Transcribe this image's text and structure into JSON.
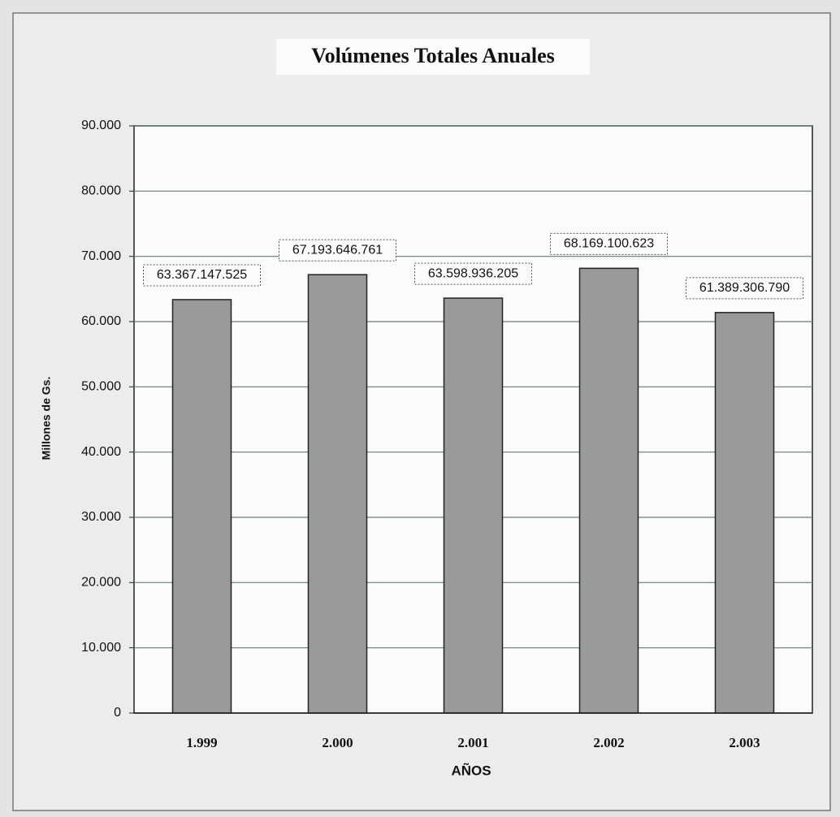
{
  "chart_data": {
    "type": "bar",
    "title": "Volúmenes Totales Anuales",
    "y_label": "Millones de Gs.",
    "x_label": "AÑOS",
    "categories": [
      "1.999",
      "2.000",
      "2.001",
      "2.002",
      "2.003"
    ],
    "values": [
      63367.147525,
      67193.646761,
      63598.936205,
      68169.100623,
      61389.30679
    ],
    "value_labels": [
      "63.367.147.525",
      "67.193.646.761",
      "63.598.936.205",
      "68.169.100.623",
      "61.389.306.790"
    ],
    "color": "#9a9a9a",
    "ylim": [
      0,
      90000
    ],
    "yticks": [
      0,
      {
        "value": 10000,
        "label": "10.000"
      },
      {
        "value": 20000,
        "label": "20.000"
      },
      {
        "value": 30000,
        "label": "30.000"
      },
      {
        "value": 40000,
        "label": "40.000"
      },
      {
        "value": 50000,
        "label": "50.000"
      },
      {
        "value": 60000,
        "label": "60.000"
      },
      {
        "value": 70000,
        "label": "70.000"
      },
      {
        "value": 80000,
        "label": "80.000"
      },
      {
        "value": 90000,
        "label": "90.000"
      }
    ],
    "grid": true
  }
}
